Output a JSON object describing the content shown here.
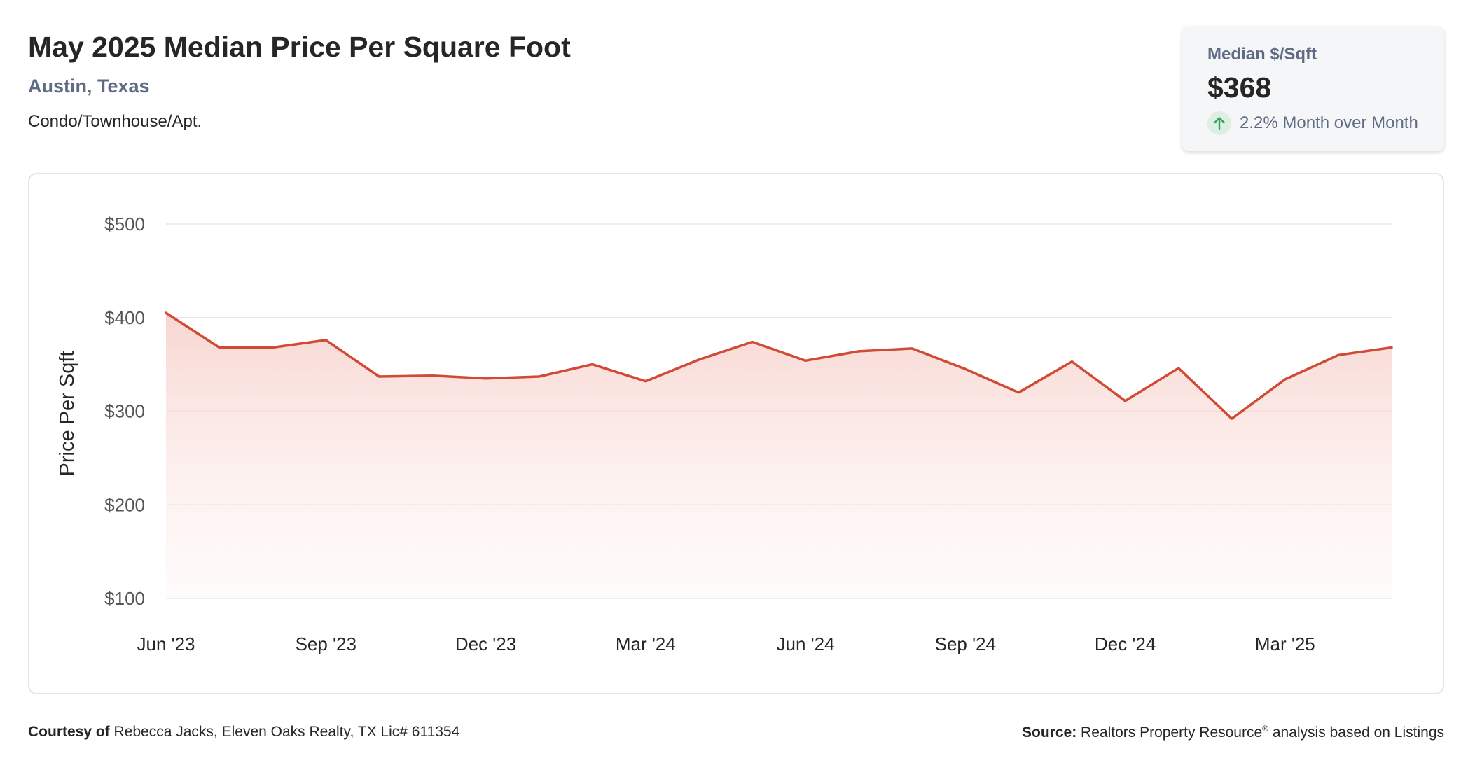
{
  "header": {
    "title": "May 2025 Median Price Per Square Foot",
    "location": "Austin, Texas",
    "property_type": "Condo/Townhouse/Apt."
  },
  "stat_card": {
    "label": "Median $/Sqft",
    "value": "$368",
    "change": "2.2% Month over Month",
    "change_icon": "arrow-up-icon"
  },
  "chart_data": {
    "type": "area",
    "ylabel": "Price Per Sqft",
    "xlabel": "",
    "ylim": [
      100,
      500
    ],
    "y_ticks": [
      {
        "value": 500,
        "label": "$500"
      },
      {
        "value": 400,
        "label": "$400"
      },
      {
        "value": 300,
        "label": "$300"
      },
      {
        "value": 200,
        "label": "$200"
      },
      {
        "value": 100,
        "label": "$100"
      }
    ],
    "x_ticks": [
      {
        "index": 0,
        "label": "Jun '23"
      },
      {
        "index": 3,
        "label": "Sep '23"
      },
      {
        "index": 6,
        "label": "Dec '23"
      },
      {
        "index": 9,
        "label": "Mar '24"
      },
      {
        "index": 12,
        "label": "Jun '24"
      },
      {
        "index": 15,
        "label": "Sep '24"
      },
      {
        "index": 18,
        "label": "Dec '24"
      },
      {
        "index": 21,
        "label": "Mar '25"
      }
    ],
    "x": [
      "2023-06",
      "2023-07",
      "2023-08",
      "2023-09",
      "2023-10",
      "2023-11",
      "2023-12",
      "2024-01",
      "2024-02",
      "2024-03",
      "2024-04",
      "2024-05",
      "2024-06",
      "2024-07",
      "2024-08",
      "2024-09",
      "2024-10",
      "2024-11",
      "2024-12",
      "2025-01",
      "2025-02",
      "2025-03",
      "2025-04",
      "2025-05"
    ],
    "series": [
      {
        "values": [
          405,
          368,
          368,
          376,
          337,
          338,
          335,
          337,
          350,
          332,
          355,
          374,
          354,
          364,
          367,
          345,
          320,
          353,
          311,
          346,
          292,
          334,
          360,
          368
        ],
        "color": "#d04a35"
      }
    ],
    "grid": true,
    "legend": "none"
  },
  "colors": {
    "line": "#d04a35",
    "fill_top": "#f8d6d1",
    "accent_text": "#5f6b85",
    "up_green": "#2fa35a"
  },
  "footer": {
    "courtesy_label": "Courtesy of",
    "courtesy_text": "Rebecca Jacks, Eleven Oaks Realty, TX Lic# 611354",
    "source_label": "Source:",
    "source_text": "Realtors Property Resource",
    "source_mark": "®",
    "source_suffix": "analysis based on Listings"
  }
}
